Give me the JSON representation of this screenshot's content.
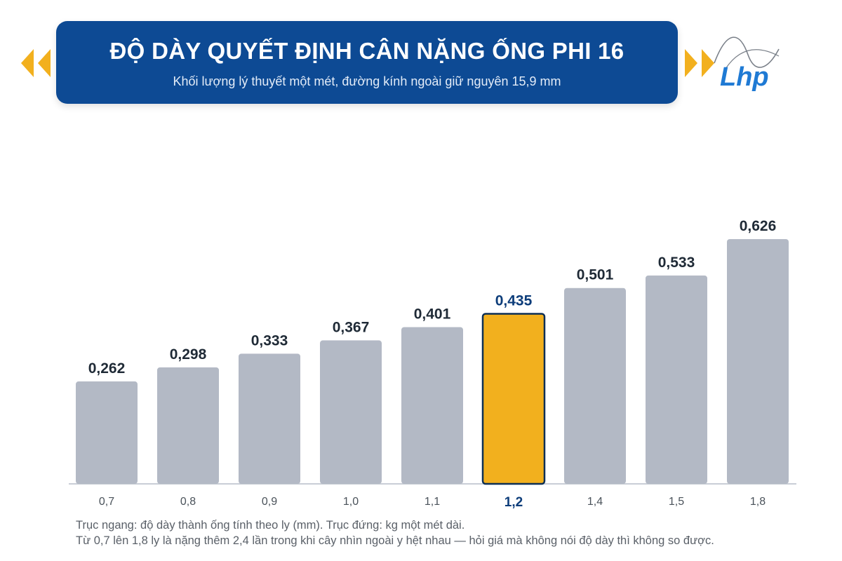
{
  "header": {
    "title": "ĐỘ DÀY QUYẾT ĐỊNH CÂN NẶNG ỐNG PHI 16",
    "subtitle": "Khối lượng lý thuyết một mét, đường kính ngoài giữ nguyên 15,9 mm"
  },
  "logo": {
    "text": "Lhp",
    "icon": "lhp-logo"
  },
  "colors": {
    "banner": "#0d4a94",
    "bar": "#b3b9c5",
    "highlight": "#f2b01e",
    "highlight_border": "#0d2f55",
    "arrow": "#f2b01e"
  },
  "chart_data": {
    "type": "bar",
    "categories": [
      "0,7",
      "0,8",
      "0,9",
      "1,0",
      "1,1",
      "1,2",
      "1,4",
      "1,5",
      "1,8"
    ],
    "values": [
      0.262,
      0.298,
      0.333,
      0.367,
      0.401,
      0.435,
      0.501,
      0.533,
      0.626
    ],
    "value_labels": [
      "0,262",
      "0,298",
      "0,333",
      "0,367",
      "0,401",
      "0,435",
      "0,501",
      "0,533",
      "0,626"
    ],
    "highlight_category": "1,2",
    "ylim": [
      0,
      0.626
    ],
    "grid": false,
    "legend": "none"
  },
  "notes": {
    "line1": "Trục ngang: độ dày thành ống tính theo ly (mm). Trục đứng: kg một mét dài.",
    "line2": "Từ 0,7 lên 1,8 ly là nặng thêm 2,4 lần trong khi cây nhìn ngoài y hệt nhau — hỏi giá mà không nói độ dày thì không so được."
  }
}
